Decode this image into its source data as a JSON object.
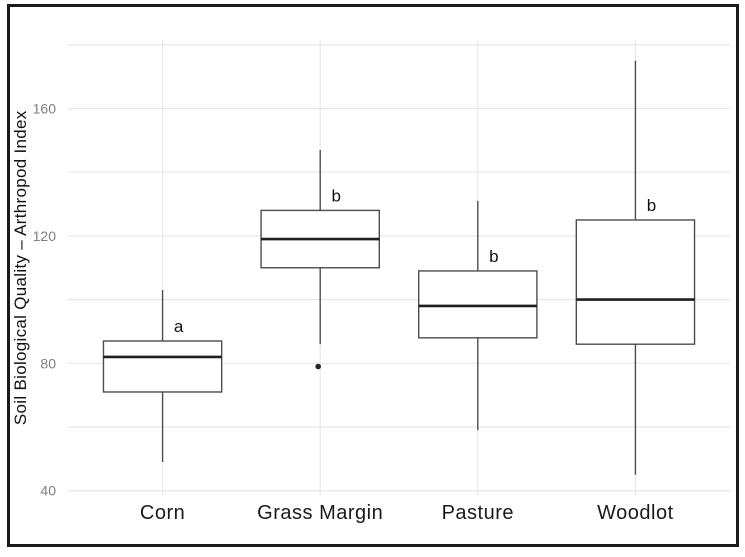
{
  "figure": {
    "background": "#ffffff",
    "border_color": "#1a1a1a"
  },
  "chart_data": {
    "type": "boxplot",
    "title": "",
    "xlabel": "",
    "ylabel": "Soil Biological Quality – Arthropod Index",
    "categories": [
      "Corn",
      "Grass Margin",
      "Pasture",
      "Woodlot"
    ],
    "y_ticks": [
      40,
      80,
      120,
      160
    ],
    "y_minor_gridlines": [
      60,
      100,
      140,
      180
    ],
    "ylim": [
      38.5,
      181.5
    ],
    "grid": "on",
    "legend": "none",
    "series": [
      {
        "category": "Corn",
        "whisker_low": 49,
        "q1": 71,
        "median": 82,
        "q3": 87,
        "whisker_high": 103,
        "outliers": [],
        "sig_label": "a"
      },
      {
        "category": "Grass Margin",
        "whisker_low": 86,
        "q1": 110,
        "median": 119,
        "q3": 128,
        "whisker_high": 147,
        "outliers": [
          79
        ],
        "sig_label": "b"
      },
      {
        "category": "Pasture",
        "whisker_low": 59,
        "q1": 88,
        "median": 98,
        "q3": 109,
        "whisker_high": 131,
        "outliers": [],
        "sig_label": "b"
      },
      {
        "category": "Woodlot",
        "whisker_low": 45,
        "q1": 86,
        "median": 100,
        "q3": 125,
        "whisker_high": 175,
        "outliers": [],
        "sig_label": "b"
      }
    ],
    "colors": {
      "gridline": "#e8e8e8",
      "box_stroke": "#4d4d4d",
      "box_fill": "#ffffff",
      "median": "#1f1f1f",
      "whisker": "#4d4d4d",
      "outlier": "#252525",
      "tick_label": "#7f7f7f",
      "category_label": "#1a1a1a",
      "axis_title": "#111111",
      "sig_label": "#111111"
    }
  }
}
